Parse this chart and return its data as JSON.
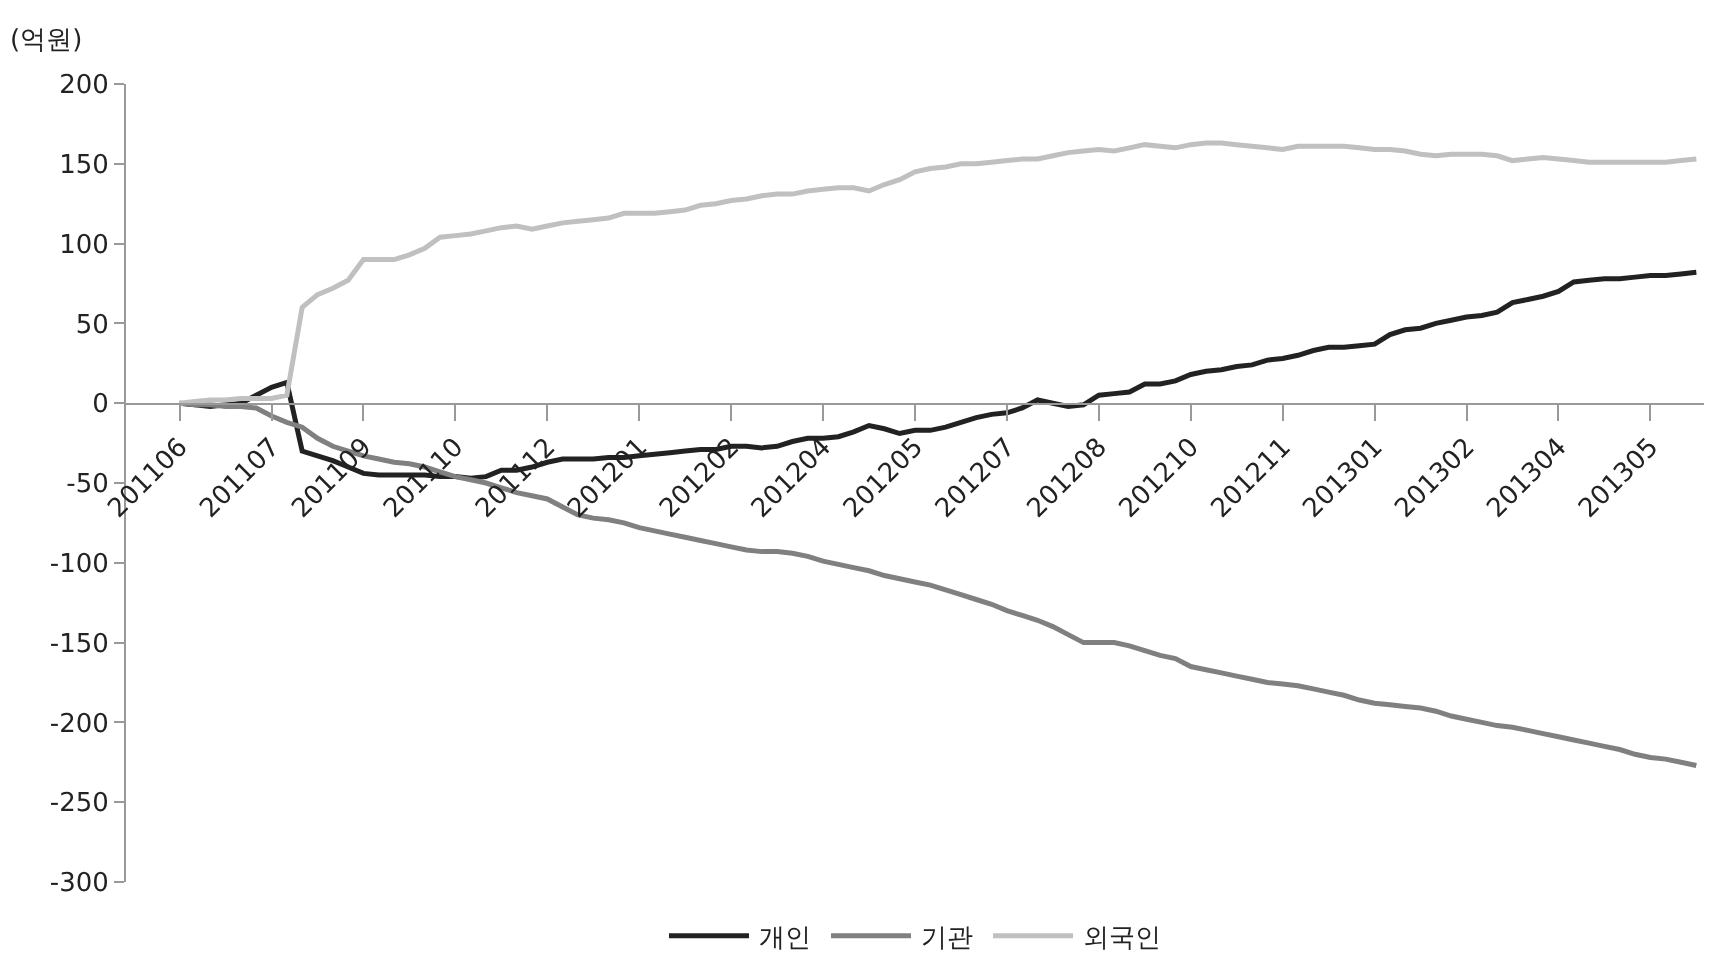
{
  "chart_data": {
    "type": "line",
    "ylabel": "(억원)",
    "categories": [
      "201106",
      null,
      null,
      null,
      null,
      null,
      "201107",
      null,
      null,
      null,
      null,
      null,
      "201109",
      null,
      null,
      null,
      null,
      null,
      "201110",
      null,
      null,
      null,
      null,
      null,
      "201112",
      null,
      null,
      null,
      null,
      null,
      "201201",
      null,
      null,
      null,
      null,
      null,
      "201202",
      null,
      null,
      null,
      null,
      null,
      "201204",
      null,
      null,
      null,
      null,
      null,
      "201205",
      null,
      null,
      null,
      null,
      null,
      "201207",
      null,
      null,
      null,
      null,
      null,
      "201208",
      null,
      null,
      null,
      null,
      null,
      "201210",
      null,
      null,
      null,
      null,
      null,
      "201211",
      null,
      null,
      null,
      null,
      null,
      "201301",
      null,
      null,
      null,
      null,
      null,
      "201302",
      null,
      null,
      null,
      null,
      null,
      "201304",
      null,
      null,
      null,
      null,
      null,
      "201305",
      null,
      null,
      null
    ],
    "series": [
      {
        "name": "개인",
        "color": "#222222",
        "values": [
          0,
          -1,
          -2,
          -1,
          0,
          5,
          10,
          13,
          -30,
          -33,
          -36,
          -40,
          -44,
          -45,
          -45,
          -45,
          -45,
          -46,
          -46,
          -47,
          -46,
          -42,
          -42,
          -40,
          -37,
          -35,
          -35,
          -35,
          -34,
          -34,
          -33,
          -32,
          -31,
          -30,
          -29,
          -29,
          -27,
          -27,
          -28,
          -27,
          -24,
          -22,
          -22,
          -21,
          -18,
          -14,
          -16,
          -19,
          -17,
          -17,
          -15,
          -12,
          -9,
          -7,
          -6,
          -3,
          2,
          0,
          -2,
          -1,
          5,
          6,
          7,
          12,
          12,
          14,
          18,
          20,
          21,
          23,
          24,
          27,
          28,
          30,
          33,
          35,
          35,
          36,
          37,
          43,
          46,
          47,
          50,
          52,
          54,
          55,
          57,
          63,
          65,
          67,
          70,
          76,
          77,
          78,
          78,
          79,
          80,
          80,
          81,
          82
        ]
      },
      {
        "name": "기관",
        "color": "#808080",
        "values": [
          0,
          -1,
          -1,
          -2,
          -2,
          -3,
          -8,
          -12,
          -15,
          -22,
          -27,
          -30,
          -33,
          -35,
          -37,
          -38,
          -40,
          -43,
          -46,
          -48,
          -50,
          -53,
          -56,
          -58,
          -60,
          -65,
          -70,
          -72,
          -73,
          -75,
          -78,
          -80,
          -82,
          -84,
          -86,
          -88,
          -90,
          -92,
          -93,
          -93,
          -94,
          -96,
          -99,
          -101,
          -103,
          -105,
          -108,
          -110,
          -112,
          -114,
          -117,
          -120,
          -123,
          -126,
          -130,
          -133,
          -136,
          -140,
          -145,
          -150,
          -150,
          -150,
          -152,
          -155,
          -158,
          -160,
          -165,
          -167,
          -169,
          -171,
          -173,
          -175,
          -176,
          -177,
          -179,
          -181,
          -183,
          -186,
          -188,
          -189,
          -190,
          -191,
          -193,
          -196,
          -198,
          -200,
          -202,
          -203,
          -205,
          -207,
          -209,
          -211,
          -213,
          -215,
          -217,
          -220,
          -222,
          -223,
          -225,
          -227
        ]
      },
      {
        "name": "외국인",
        "color": "#c0c0c0",
        "values": [
          0,
          1,
          2,
          2,
          3,
          3,
          3,
          5,
          60,
          68,
          72,
          77,
          90,
          90,
          90,
          93,
          97,
          104,
          105,
          106,
          108,
          110,
          111,
          109,
          111,
          113,
          114,
          115,
          116,
          119,
          119,
          119,
          120,
          121,
          124,
          125,
          127,
          128,
          130,
          131,
          131,
          133,
          134,
          135,
          135,
          133,
          137,
          140,
          145,
          147,
          148,
          150,
          150,
          151,
          152,
          153,
          153,
          155,
          157,
          158,
          159,
          158,
          160,
          162,
          161,
          160,
          162,
          163,
          163,
          162,
          161,
          160,
          159,
          161,
          161,
          161,
          161,
          160,
          159,
          159,
          158,
          156,
          155,
          156,
          156,
          156,
          155,
          152,
          153,
          154,
          153,
          152,
          151,
          151,
          151,
          151,
          151,
          151,
          152,
          153
        ]
      }
    ],
    "ylim": [
      -300,
      200
    ],
    "yticks": [
      -300,
      -250,
      -200,
      -150,
      -100,
      -50,
      0,
      50,
      100,
      150,
      200
    ],
    "grid": false,
    "legend": "bottom"
  }
}
